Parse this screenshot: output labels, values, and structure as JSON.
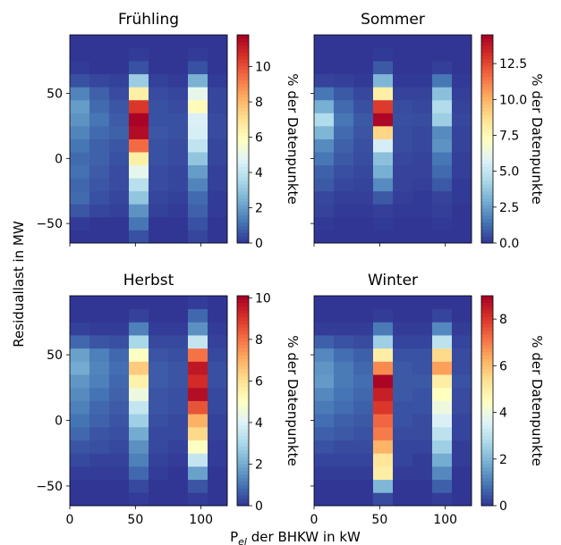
{
  "figure": {
    "ylabel": "Residuallast in MW",
    "xlabel_main": "P",
    "xlabel_sub": "el",
    "xlabel_rest": " der BHKW in kW",
    "colorbar_label": "% der Datenpunkte",
    "colormap": "RdYlBu_r"
  },
  "chart_data": [
    {
      "type": "heatmap",
      "title": "Frühling",
      "x_bins": [
        0,
        15,
        30,
        45,
        60,
        75,
        90,
        105,
        120
      ],
      "y_bins": [
        -65,
        -55,
        -45,
        -35,
        -25,
        -15,
        -5,
        5,
        15,
        25,
        35,
        45,
        55,
        65,
        75,
        85,
        95
      ],
      "xlim": [
        0,
        120
      ],
      "ylim": [
        -65,
        95
      ],
      "xticks": [
        "0",
        "50",
        "100"
      ],
      "yticks": [
        "−50",
        "0",
        "50"
      ],
      "colorbar_ticks": [
        "0",
        "2",
        "4",
        "6",
        "8",
        "10"
      ],
      "colorbar_max": 11.8,
      "values": [
        [
          0,
          0,
          0,
          0.5,
          0,
          0,
          0.3,
          0
        ],
        [
          0.1,
          0,
          0,
          1.2,
          0,
          0,
          0.5,
          0
        ],
        [
          0.6,
          0.3,
          0.2,
          1.8,
          0.2,
          0.1,
          0.8,
          0.1
        ],
        [
          1.0,
          0.5,
          0.3,
          3.0,
          0.3,
          0.2,
          1.0,
          0.1
        ],
        [
          0.9,
          0.6,
          0.4,
          3.8,
          0.4,
          0.3,
          1.5,
          0.2
        ],
        [
          1.1,
          0.7,
          0.4,
          5.0,
          0.4,
          0.3,
          2.0,
          0.2
        ],
        [
          1.0,
          0.8,
          0.5,
          6.5,
          0.5,
          0.4,
          3.0,
          0.3
        ],
        [
          1.2,
          0.8,
          0.6,
          9.5,
          0.5,
          0.4,
          4.0,
          0.3
        ],
        [
          1.5,
          1.0,
          0.8,
          11.5,
          0.6,
          0.5,
          4.5,
          0.4
        ],
        [
          1.8,
          1.2,
          0.7,
          11.7,
          0.5,
          0.5,
          4.6,
          0.4
        ],
        [
          2.0,
          1.0,
          0.6,
          10.5,
          0.5,
          0.4,
          6.0,
          0.3
        ],
        [
          1.5,
          0.8,
          0.4,
          6.5,
          0.4,
          0.3,
          5.0,
          0.3
        ],
        [
          0.5,
          0.3,
          0.2,
          3.2,
          0.2,
          0.1,
          2.5,
          0.1
        ],
        [
          0.1,
          0,
          0,
          0.5,
          0,
          0,
          0.5,
          0
        ],
        [
          0,
          0,
          0,
          0.1,
          0,
          0,
          0.1,
          0
        ],
        [
          0,
          0,
          0,
          0,
          0,
          0,
          0,
          0
        ]
      ]
    },
    {
      "type": "heatmap",
      "title": "Sommer",
      "x_bins": [
        0,
        15,
        30,
        45,
        60,
        75,
        90,
        105,
        120
      ],
      "y_bins": [
        -65,
        -55,
        -45,
        -35,
        -25,
        -15,
        -5,
        5,
        15,
        25,
        35,
        45,
        55,
        65,
        75,
        85,
        95
      ],
      "xlim": [
        0,
        120
      ],
      "ylim": [
        -65,
        95
      ],
      "xticks": [
        "0",
        "50",
        "100"
      ],
      "yticks": [
        "−50",
        "0",
        "50"
      ],
      "colorbar_ticks": [
        "0.0",
        "2.5",
        "5.0",
        "7.5",
        "10.0",
        "12.5"
      ],
      "colorbar_max": 14.5,
      "values": [
        [
          0,
          0,
          0,
          0,
          0,
          0,
          0,
          0
        ],
        [
          0.1,
          0,
          0,
          0.1,
          0,
          0,
          0.1,
          0
        ],
        [
          0.3,
          0.1,
          0.1,
          0.2,
          0.1,
          0.1,
          0.2,
          0
        ],
        [
          0.4,
          0.2,
          0.2,
          0.8,
          0.2,
          0.1,
          0.3,
          0.1
        ],
        [
          0.8,
          0.4,
          0.3,
          2.0,
          0.3,
          0.2,
          0.8,
          0.1
        ],
        [
          1.0,
          0.6,
          0.4,
          3.0,
          0.3,
          0.3,
          1.2,
          0.2
        ],
        [
          1.5,
          0.8,
          0.5,
          3.5,
          0.4,
          0.3,
          1.5,
          0.2
        ],
        [
          2.0,
          1.0,
          0.6,
          5.5,
          0.5,
          0.4,
          2.2,
          0.3
        ],
        [
          3.2,
          1.2,
          0.7,
          9.0,
          0.5,
          0.4,
          2.0,
          0.3
        ],
        [
          4.5,
          1.5,
          0.8,
          14.3,
          0.6,
          0.5,
          4.0,
          0.4
        ],
        [
          3.0,
          1.2,
          0.6,
          12.8,
          0.5,
          0.4,
          4.5,
          0.3
        ],
        [
          1.5,
          0.8,
          0.4,
          8.0,
          0.3,
          0.3,
          3.5,
          0.2
        ],
        [
          0.3,
          0.2,
          0.1,
          3.2,
          0.1,
          0.1,
          1.5,
          0.1
        ],
        [
          0,
          0,
          0,
          0.8,
          0,
          0,
          0.2,
          0
        ],
        [
          0,
          0,
          0,
          0.1,
          0,
          0,
          0,
          0
        ],
        [
          0,
          0,
          0,
          0,
          0,
          0,
          0,
          0
        ]
      ]
    },
    {
      "type": "heatmap",
      "title": "Herbst",
      "x_bins": [
        0,
        15,
        30,
        45,
        60,
        75,
        90,
        105,
        120
      ],
      "y_bins": [
        -65,
        -55,
        -45,
        -35,
        -25,
        -15,
        -5,
        5,
        15,
        25,
        35,
        45,
        55,
        65,
        75,
        85,
        95
      ],
      "xlim": [
        0,
        120
      ],
      "ylim": [
        -65,
        95
      ],
      "xticks": [
        "0",
        "50",
        "100"
      ],
      "yticks": [
        "−50",
        "0",
        "50"
      ],
      "colorbar_ticks": [
        "0",
        "2",
        "4",
        "6",
        "8",
        "10"
      ],
      "colorbar_max": 10.1,
      "values": [
        [
          0,
          0,
          0,
          0.1,
          0,
          0,
          0.1,
          0
        ],
        [
          0,
          0,
          0,
          0.3,
          0,
          0,
          0.5,
          0
        ],
        [
          0.1,
          0.1,
          0.1,
          0.8,
          0.1,
          0,
          1.8,
          0
        ],
        [
          0.3,
          0.2,
          0.2,
          1.2,
          0.2,
          0.1,
          3.5,
          0.1
        ],
        [
          0.5,
          0.4,
          0.3,
          1.5,
          0.3,
          0.2,
          5.0,
          0.1
        ],
        [
          0.8,
          0.5,
          0.4,
          2.0,
          0.3,
          0.3,
          6.2,
          0.2
        ],
        [
          1.0,
          0.7,
          0.5,
          2.8,
          0.4,
          0.3,
          7.0,
          0.2
        ],
        [
          1.2,
          0.8,
          0.6,
          3.5,
          0.5,
          0.4,
          8.5,
          0.3
        ],
        [
          1.4,
          1.0,
          0.7,
          4.5,
          0.5,
          0.4,
          9.8,
          0.3
        ],
        [
          1.6,
          1.2,
          0.8,
          5.5,
          0.6,
          0.5,
          9.2,
          0.4
        ],
        [
          2.0,
          1.3,
          0.9,
          6.5,
          0.6,
          0.5,
          9.6,
          0.4
        ],
        [
          1.8,
          1.2,
          0.8,
          5.0,
          0.5,
          0.4,
          8.0,
          0.3
        ],
        [
          0.8,
          0.5,
          0.4,
          3.0,
          0.3,
          0.3,
          3.5,
          0.2
        ],
        [
          0.2,
          0.1,
          0.1,
          1.2,
          0.1,
          0.1,
          1.5,
          0.1
        ],
        [
          0,
          0,
          0,
          0.2,
          0,
          0,
          0.8,
          0
        ],
        [
          0,
          0,
          0,
          0,
          0,
          0,
          0.1,
          0
        ]
      ]
    },
    {
      "type": "heatmap",
      "title": "Winter",
      "x_bins": [
        0,
        15,
        30,
        45,
        60,
        75,
        90,
        105,
        120
      ],
      "y_bins": [
        -65,
        -55,
        -45,
        -35,
        -25,
        -15,
        -5,
        5,
        15,
        25,
        35,
        45,
        55,
        65,
        75,
        85,
        95
      ],
      "xlim": [
        0,
        120
      ],
      "ylim": [
        -65,
        95
      ],
      "xticks": [
        "0",
        "50",
        "100"
      ],
      "yticks": [
        "−50",
        "0",
        "50"
      ],
      "colorbar_ticks": [
        "0",
        "2",
        "4",
        "6",
        "8"
      ],
      "colorbar_max": 9.0,
      "values": [
        [
          0,
          0,
          0,
          0.3,
          0,
          0,
          0.1,
          0
        ],
        [
          0,
          0,
          0,
          2.0,
          0,
          0,
          0.6,
          0
        ],
        [
          0.1,
          0.1,
          0.1,
          5.0,
          0.1,
          0.1,
          1.2,
          0
        ],
        [
          0.2,
          0.2,
          0.2,
          5.2,
          0.2,
          0.1,
          1.8,
          0.1
        ],
        [
          0.4,
          0.3,
          0.3,
          6.2,
          0.2,
          0.2,
          2.5,
          0.1
        ],
        [
          0.6,
          0.5,
          0.4,
          7.0,
          0.3,
          0.3,
          3.0,
          0.2
        ],
        [
          0.8,
          0.6,
          0.5,
          7.3,
          0.4,
          0.3,
          3.5,
          0.2
        ],
        [
          1.0,
          0.8,
          0.6,
          8.0,
          0.4,
          0.4,
          4.0,
          0.3
        ],
        [
          1.2,
          0.9,
          0.7,
          8.4,
          0.5,
          0.4,
          4.5,
          0.3
        ],
        [
          1.5,
          1.0,
          0.8,
          8.9,
          0.5,
          0.5,
          5.0,
          0.4
        ],
        [
          1.4,
          1.0,
          0.7,
          6.8,
          0.5,
          0.4,
          6.5,
          0.3
        ],
        [
          1.2,
          0.8,
          0.6,
          5.0,
          0.4,
          0.4,
          5.5,
          0.3
        ],
        [
          0.6,
          0.4,
          0.3,
          2.5,
          0.2,
          0.2,
          3.0,
          0.2
        ],
        [
          0.1,
          0.1,
          0.1,
          1.0,
          0.1,
          0.1,
          1.2,
          0.1
        ],
        [
          0,
          0,
          0,
          0.1,
          0,
          0,
          0.2,
          0
        ],
        [
          0,
          0,
          0,
          0,
          0,
          0,
          0,
          0
        ]
      ]
    }
  ]
}
